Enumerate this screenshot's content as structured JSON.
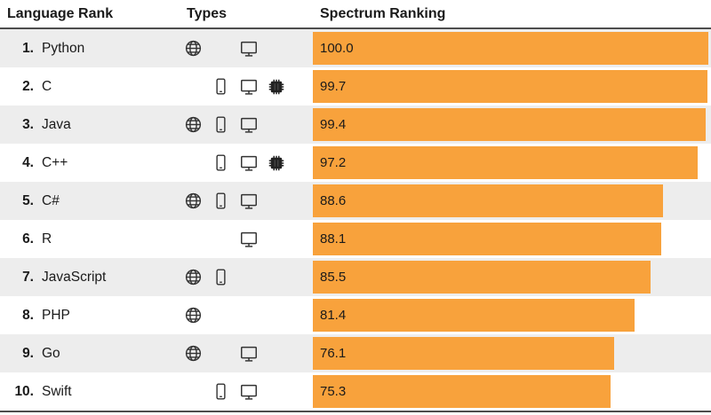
{
  "header": {
    "language_rank": "Language Rank",
    "types": "Types",
    "spectrum_ranking": "Spectrum Ranking"
  },
  "colors": {
    "bar": "#f8a23c",
    "row_alt": "#ededed",
    "row": "#ffffff",
    "border": "#4d4d4d"
  },
  "icon_legend": {
    "web": "globe-icon",
    "mobile": "phone-icon",
    "desktop": "monitor-icon",
    "embedded": "chip-icon"
  },
  "rows": [
    {
      "rank": "1.",
      "name": "Python",
      "value": 100.0,
      "value_label": "100.0",
      "types": [
        "web",
        "desktop"
      ]
    },
    {
      "rank": "2.",
      "name": "C",
      "value": 99.7,
      "value_label": "99.7",
      "types": [
        "mobile",
        "desktop",
        "embedded"
      ]
    },
    {
      "rank": "3.",
      "name": "Java",
      "value": 99.4,
      "value_label": "99.4",
      "types": [
        "web",
        "mobile",
        "desktop"
      ]
    },
    {
      "rank": "4.",
      "name": "C++",
      "value": 97.2,
      "value_label": "97.2",
      "types": [
        "mobile",
        "desktop",
        "embedded"
      ]
    },
    {
      "rank": "5.",
      "name": "C#",
      "value": 88.6,
      "value_label": "88.6",
      "types": [
        "web",
        "mobile",
        "desktop"
      ]
    },
    {
      "rank": "6.",
      "name": "R",
      "value": 88.1,
      "value_label": "88.1",
      "types": [
        "desktop"
      ]
    },
    {
      "rank": "7.",
      "name": "JavaScript",
      "value": 85.5,
      "value_label": "85.5",
      "types": [
        "web",
        "mobile"
      ]
    },
    {
      "rank": "8.",
      "name": "PHP",
      "value": 81.4,
      "value_label": "81.4",
      "types": [
        "web"
      ]
    },
    {
      "rank": "9.",
      "name": "Go",
      "value": 76.1,
      "value_label": "76.1",
      "types": [
        "web",
        "desktop"
      ]
    },
    {
      "rank": "10.",
      "name": "Swift",
      "value": 75.3,
      "value_label": "75.3",
      "types": [
        "mobile",
        "desktop"
      ]
    }
  ],
  "chart_data": {
    "type": "bar",
    "title": "Spectrum Ranking",
    "categories": [
      "Python",
      "C",
      "Java",
      "C++",
      "C#",
      "R",
      "JavaScript",
      "PHP",
      "Go",
      "Swift"
    ],
    "values": [
      100.0,
      99.7,
      99.4,
      97.2,
      88.6,
      88.1,
      85.5,
      81.4,
      76.1,
      75.3
    ],
    "xlabel": "",
    "ylabel": "",
    "xlim": [
      0,
      100
    ],
    "grid": false,
    "legend": "none",
    "orientation": "horizontal",
    "bar_color": "#f8a23c"
  }
}
